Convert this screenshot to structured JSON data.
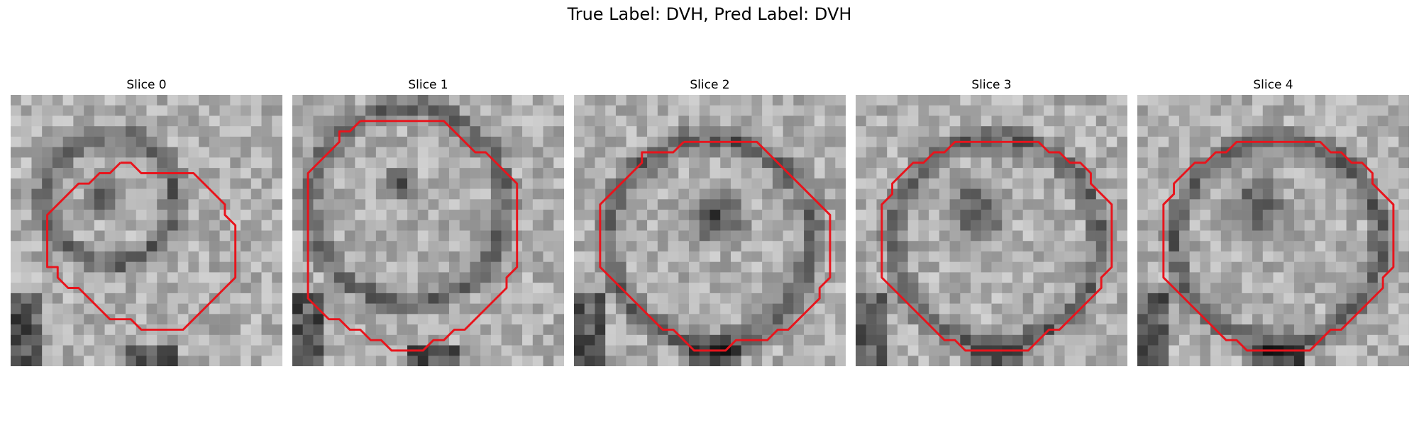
{
  "suptitle": "True Label: DVH, Pred Label: DVH",
  "contour_color": "#e8141c",
  "panels": [
    {
      "title": "Slice 0",
      "contour": [
        [
          10.5,
          6.5
        ],
        [
          11.5,
          6.5
        ],
        [
          12.5,
          7.5
        ],
        [
          13.5,
          7.5
        ],
        [
          14.5,
          7.5
        ],
        [
          15.5,
          7.5
        ],
        [
          16.5,
          7.5
        ],
        [
          17.5,
          7.5
        ],
        [
          18.5,
          8.5
        ],
        [
          19.5,
          9.5
        ],
        [
          20.5,
          10.5
        ],
        [
          20.5,
          11.5
        ],
        [
          21.5,
          12.5
        ],
        [
          21.5,
          13.5
        ],
        [
          21.5,
          14.5
        ],
        [
          21.5,
          15.5
        ],
        [
          21.5,
          16.5
        ],
        [
          21.5,
          17.5
        ],
        [
          20.5,
          18.5
        ],
        [
          19.5,
          19.5
        ],
        [
          18.5,
          20.5
        ],
        [
          17.5,
          21.5
        ],
        [
          16.5,
          22.5
        ],
        [
          15.5,
          22.5
        ],
        [
          14.5,
          22.5
        ],
        [
          13.5,
          22.5
        ],
        [
          12.5,
          22.5
        ],
        [
          11.5,
          21.5
        ],
        [
          10.5,
          21.5
        ],
        [
          9.5,
          21.5
        ],
        [
          8.5,
          20.5
        ],
        [
          7.5,
          19.5
        ],
        [
          6.5,
          18.5
        ],
        [
          5.5,
          18.5
        ],
        [
          4.5,
          17.5
        ],
        [
          4.5,
          16.5
        ],
        [
          3.5,
          16.5
        ],
        [
          3.5,
          15.5
        ],
        [
          3.5,
          14.5
        ],
        [
          3.5,
          13.5
        ],
        [
          3.5,
          12.5
        ],
        [
          3.5,
          11.5
        ],
        [
          4.5,
          10.5
        ],
        [
          5.5,
          9.5
        ],
        [
          6.5,
          8.5
        ],
        [
          7.5,
          8.5
        ],
        [
          8.5,
          7.5
        ],
        [
          9.5,
          7.5
        ],
        [
          10.5,
          6.5
        ]
      ]
    },
    {
      "title": "Slice 1",
      "contour": [
        [
          6.5,
          2.5
        ],
        [
          7.5,
          2.5
        ],
        [
          8.5,
          2.5
        ],
        [
          9.5,
          2.5
        ],
        [
          10.5,
          2.5
        ],
        [
          11.5,
          2.5
        ],
        [
          12.5,
          2.5
        ],
        [
          13.5,
          2.5
        ],
        [
          14.5,
          2.5
        ],
        [
          15.5,
          3.5
        ],
        [
          16.5,
          4.5
        ],
        [
          17.5,
          5.5
        ],
        [
          18.5,
          5.5
        ],
        [
          19.5,
          6.5
        ],
        [
          20.5,
          7.5
        ],
        [
          21.5,
          8.5
        ],
        [
          21.5,
          9.5
        ],
        [
          21.5,
          10.5
        ],
        [
          21.5,
          11.5
        ],
        [
          21.5,
          12.5
        ],
        [
          21.5,
          13.5
        ],
        [
          21.5,
          14.5
        ],
        [
          21.5,
          15.5
        ],
        [
          21.5,
          16.5
        ],
        [
          20.5,
          17.5
        ],
        [
          20.5,
          18.5
        ],
        [
          19.5,
          19.5
        ],
        [
          18.5,
          20.5
        ],
        [
          17.5,
          21.5
        ],
        [
          16.5,
          22.5
        ],
        [
          15.5,
          22.5
        ],
        [
          14.5,
          23.5
        ],
        [
          13.5,
          23.5
        ],
        [
          12.5,
          24.5
        ],
        [
          11.5,
          24.5
        ],
        [
          10.5,
          24.5
        ],
        [
          9.5,
          24.5
        ],
        [
          8.5,
          23.5
        ],
        [
          7.5,
          23.5
        ],
        [
          6.5,
          22.5
        ],
        [
          5.5,
          22.5
        ],
        [
          4.5,
          21.5
        ],
        [
          3.5,
          21.5
        ],
        [
          2.5,
          20.5
        ],
        [
          1.5,
          19.5
        ],
        [
          1.5,
          18.5
        ],
        [
          1.5,
          17.5
        ],
        [
          1.5,
          16.5
        ],
        [
          1.5,
          15.5
        ],
        [
          1.5,
          14.5
        ],
        [
          1.5,
          13.5
        ],
        [
          1.5,
          12.5
        ],
        [
          1.5,
          11.5
        ],
        [
          1.5,
          10.5
        ],
        [
          1.5,
          9.5
        ],
        [
          1.5,
          8.5
        ],
        [
          1.5,
          7.5
        ],
        [
          2.5,
          6.5
        ],
        [
          3.5,
          5.5
        ],
        [
          4.5,
          4.5
        ],
        [
          4.5,
          3.5
        ],
        [
          5.5,
          3.5
        ],
        [
          6.5,
          2.5
        ]
      ]
    },
    {
      "title": "Slice 2",
      "contour": [
        [
          10.5,
          4.5
        ],
        [
          11.5,
          4.5
        ],
        [
          12.5,
          4.5
        ],
        [
          13.5,
          4.5
        ],
        [
          14.5,
          4.5
        ],
        [
          15.5,
          4.5
        ],
        [
          16.5,
          4.5
        ],
        [
          17.5,
          4.5
        ],
        [
          18.5,
          5.5
        ],
        [
          19.5,
          6.5
        ],
        [
          20.5,
          7.5
        ],
        [
          21.5,
          8.5
        ],
        [
          22.5,
          9.5
        ],
        [
          23.5,
          10.5
        ],
        [
          24.5,
          11.5
        ],
        [
          24.5,
          12.5
        ],
        [
          24.5,
          13.5
        ],
        [
          24.5,
          14.5
        ],
        [
          24.5,
          15.5
        ],
        [
          24.5,
          16.5
        ],
        [
          24.5,
          17.5
        ],
        [
          23.5,
          18.5
        ],
        [
          23.5,
          19.5
        ],
        [
          22.5,
          20.5
        ],
        [
          21.5,
          21.5
        ],
        [
          20.5,
          22.5
        ],
        [
          19.5,
          22.5
        ],
        [
          18.5,
          23.5
        ],
        [
          17.5,
          23.5
        ],
        [
          16.5,
          23.5
        ],
        [
          15.5,
          23.5
        ],
        [
          14.5,
          24.5
        ],
        [
          13.5,
          24.5
        ],
        [
          12.5,
          24.5
        ],
        [
          11.5,
          24.5
        ],
        [
          10.5,
          23.5
        ],
        [
          9.5,
          22.5
        ],
        [
          8.5,
          22.5
        ],
        [
          7.5,
          21.5
        ],
        [
          6.5,
          20.5
        ],
        [
          5.5,
          19.5
        ],
        [
          4.5,
          18.5
        ],
        [
          3.5,
          17.5
        ],
        [
          2.5,
          16.5
        ],
        [
          2.5,
          15.5
        ],
        [
          2.5,
          14.5
        ],
        [
          2.5,
          13.5
        ],
        [
          2.5,
          12.5
        ],
        [
          2.5,
          11.5
        ],
        [
          2.5,
          10.5
        ],
        [
          3.5,
          9.5
        ],
        [
          4.5,
          8.5
        ],
        [
          5.5,
          7.5
        ],
        [
          6.5,
          6.5
        ],
        [
          6.5,
          5.5
        ],
        [
          7.5,
          5.5
        ],
        [
          8.5,
          5.5
        ],
        [
          9.5,
          5.5
        ],
        [
          10.5,
          4.5
        ]
      ]
    },
    {
      "title": "Slice 3",
      "contour": [
        [
          10.5,
          4.5
        ],
        [
          11.5,
          4.5
        ],
        [
          12.5,
          4.5
        ],
        [
          13.5,
          4.5
        ],
        [
          14.5,
          4.5
        ],
        [
          15.5,
          4.5
        ],
        [
          16.5,
          4.5
        ],
        [
          17.5,
          4.5
        ],
        [
          18.5,
          5.5
        ],
        [
          19.5,
          5.5
        ],
        [
          20.5,
          6.5
        ],
        [
          21.5,
          6.5
        ],
        [
          22.5,
          7.5
        ],
        [
          22.5,
          8.5
        ],
        [
          23.5,
          9.5
        ],
        [
          24.5,
          10.5
        ],
        [
          24.5,
          11.5
        ],
        [
          24.5,
          12.5
        ],
        [
          24.5,
          13.5
        ],
        [
          24.5,
          14.5
        ],
        [
          24.5,
          15.5
        ],
        [
          24.5,
          16.5
        ],
        [
          23.5,
          17.5
        ],
        [
          23.5,
          18.5
        ],
        [
          22.5,
          19.5
        ],
        [
          21.5,
          20.5
        ],
        [
          20.5,
          21.5
        ],
        [
          19.5,
          22.5
        ],
        [
          18.5,
          22.5
        ],
        [
          17.5,
          23.5
        ],
        [
          16.5,
          24.5
        ],
        [
          15.5,
          24.5
        ],
        [
          14.5,
          24.5
        ],
        [
          13.5,
          24.5
        ],
        [
          12.5,
          24.5
        ],
        [
          11.5,
          24.5
        ],
        [
          10.5,
          24.5
        ],
        [
          9.5,
          23.5
        ],
        [
          8.5,
          23.5
        ],
        [
          7.5,
          22.5
        ],
        [
          6.5,
          21.5
        ],
        [
          5.5,
          20.5
        ],
        [
          4.5,
          19.5
        ],
        [
          3.5,
          18.5
        ],
        [
          2.5,
          17.5
        ],
        [
          2.5,
          16.5
        ],
        [
          2.5,
          15.5
        ],
        [
          2.5,
          14.5
        ],
        [
          2.5,
          13.5
        ],
        [
          2.5,
          12.5
        ],
        [
          2.5,
          11.5
        ],
        [
          2.5,
          10.5
        ],
        [
          3.5,
          9.5
        ],
        [
          3.5,
          8.5
        ],
        [
          4.5,
          7.5
        ],
        [
          5.5,
          6.5
        ],
        [
          6.5,
          6.5
        ],
        [
          7.5,
          5.5
        ],
        [
          8.5,
          5.5
        ],
        [
          9.5,
          4.5
        ],
        [
          10.5,
          4.5
        ]
      ]
    },
    {
      "title": "Slice 4",
      "contour": [
        [
          10.5,
          4.5
        ],
        [
          11.5,
          4.5
        ],
        [
          12.5,
          4.5
        ],
        [
          13.5,
          4.5
        ],
        [
          14.5,
          4.5
        ],
        [
          15.5,
          4.5
        ],
        [
          16.5,
          4.5
        ],
        [
          17.5,
          4.5
        ],
        [
          18.5,
          5.5
        ],
        [
          19.5,
          5.5
        ],
        [
          20.5,
          6.5
        ],
        [
          21.5,
          6.5
        ],
        [
          22.5,
          7.5
        ],
        [
          22.5,
          8.5
        ],
        [
          23.5,
          9.5
        ],
        [
          24.5,
          10.5
        ],
        [
          24.5,
          11.5
        ],
        [
          24.5,
          12.5
        ],
        [
          24.5,
          13.5
        ],
        [
          24.5,
          14.5
        ],
        [
          24.5,
          15.5
        ],
        [
          24.5,
          16.5
        ],
        [
          23.5,
          17.5
        ],
        [
          23.5,
          18.5
        ],
        [
          22.5,
          19.5
        ],
        [
          21.5,
          20.5
        ],
        [
          20.5,
          21.5
        ],
        [
          19.5,
          22.5
        ],
        [
          18.5,
          22.5
        ],
        [
          17.5,
          23.5
        ],
        [
          16.5,
          24.5
        ],
        [
          15.5,
          24.5
        ],
        [
          14.5,
          24.5
        ],
        [
          13.5,
          24.5
        ],
        [
          12.5,
          24.5
        ],
        [
          11.5,
          24.5
        ],
        [
          10.5,
          24.5
        ],
        [
          9.5,
          23.5
        ],
        [
          8.5,
          23.5
        ],
        [
          7.5,
          22.5
        ],
        [
          6.5,
          21.5
        ],
        [
          5.5,
          20.5
        ],
        [
          4.5,
          19.5
        ],
        [
          3.5,
          18.5
        ],
        [
          2.5,
          17.5
        ],
        [
          2.5,
          16.5
        ],
        [
          2.5,
          15.5
        ],
        [
          2.5,
          14.5
        ],
        [
          2.5,
          13.5
        ],
        [
          2.5,
          12.5
        ],
        [
          2.5,
          11.5
        ],
        [
          2.5,
          10.5
        ],
        [
          3.5,
          9.5
        ],
        [
          3.5,
          8.5
        ],
        [
          4.5,
          7.5
        ],
        [
          5.5,
          6.5
        ],
        [
          6.5,
          6.5
        ],
        [
          7.5,
          5.5
        ],
        [
          8.5,
          5.5
        ],
        [
          9.5,
          4.5
        ],
        [
          10.5,
          4.5
        ]
      ]
    }
  ]
}
